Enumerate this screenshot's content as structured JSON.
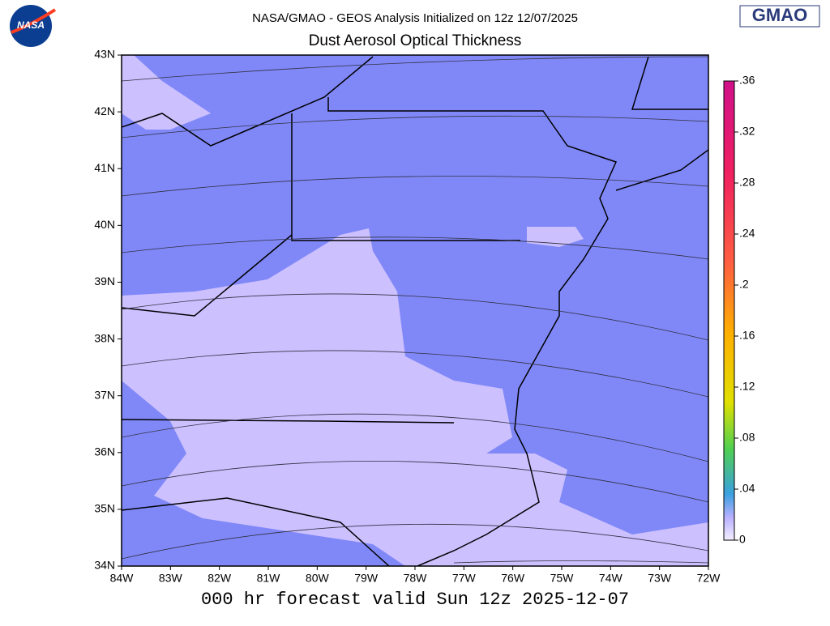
{
  "header": {
    "subtitle": "NASA/GMAO - GEOS Analysis Initialized on 12z 12/07/2025",
    "title": "Dust Aerosol Optical Thickness"
  },
  "logos": {
    "nasa": "NASA",
    "gmao": "GMAO"
  },
  "map": {
    "xlim": [
      -84,
      -72
    ],
    "ylim": [
      34,
      43
    ],
    "xticks": [
      {
        "value": -84,
        "label": "84W"
      },
      {
        "value": -83,
        "label": "83W"
      },
      {
        "value": -82,
        "label": "82W"
      },
      {
        "value": -81,
        "label": "81W"
      },
      {
        "value": -80,
        "label": "80W"
      },
      {
        "value": -79,
        "label": "79W"
      },
      {
        "value": -78,
        "label": "78W"
      },
      {
        "value": -77,
        "label": "77W"
      },
      {
        "value": -76,
        "label": "76W"
      },
      {
        "value": -75,
        "label": "75W"
      },
      {
        "value": -74,
        "label": "74W"
      },
      {
        "value": -73,
        "label": "73W"
      },
      {
        "value": -72,
        "label": "72W"
      }
    ],
    "yticks": [
      {
        "value": 43,
        "label": "43N"
      },
      {
        "value": 42,
        "label": "42N"
      },
      {
        "value": 41,
        "label": "41N"
      },
      {
        "value": 40,
        "label": "40N"
      },
      {
        "value": 39,
        "label": "39N"
      },
      {
        "value": 38,
        "label": "38N"
      },
      {
        "value": 37,
        "label": "37N"
      },
      {
        "value": 36,
        "label": "36N"
      },
      {
        "value": 35,
        "label": "35N"
      },
      {
        "value": 34,
        "label": "34N"
      }
    ]
  },
  "colorbar": {
    "lim": [
      0,
      0.36
    ],
    "ticks": [
      {
        "value": 0.36,
        "label": ".36"
      },
      {
        "value": 0.32,
        "label": ".32"
      },
      {
        "value": 0.28,
        "label": ".28"
      },
      {
        "value": 0.24,
        "label": ".24"
      },
      {
        "value": 0.2,
        "label": ".2"
      },
      {
        "value": 0.16,
        "label": ".16"
      },
      {
        "value": 0.12,
        "label": ".12"
      },
      {
        "value": 0.08,
        "label": ".08"
      },
      {
        "value": 0.04,
        "label": ".04"
      },
      0
    ]
  },
  "footer": "000 hr forecast valid Sun 12z 2025-12-07"
}
